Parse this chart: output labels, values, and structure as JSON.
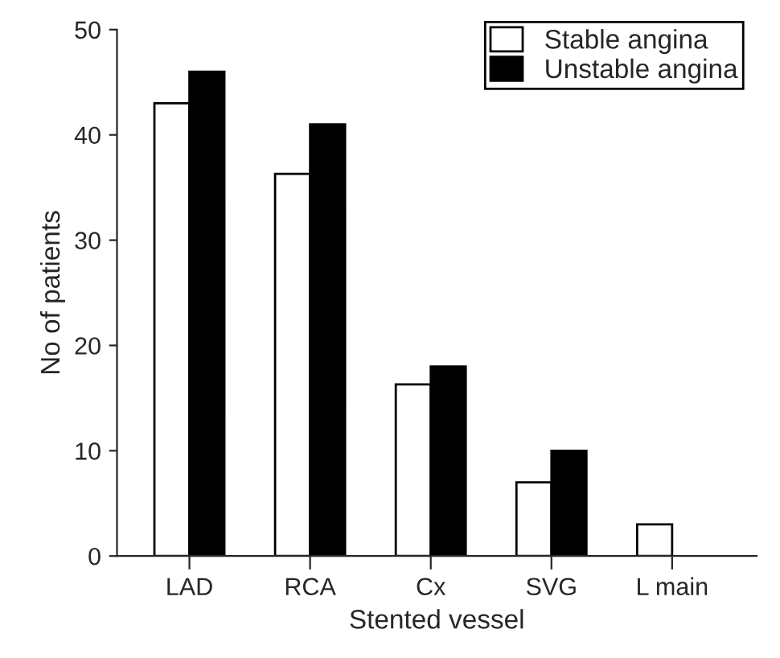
{
  "chart_data": {
    "type": "bar",
    "xlabel": "Stented vessel",
    "ylabel": "No of patients",
    "categories": [
      "LAD",
      "RCA",
      "Cx",
      "SVG",
      "L main"
    ],
    "series": [
      {
        "name": "Stable angina",
        "color": "#ffffff",
        "values": [
          43,
          36.3,
          16.3,
          7,
          3
        ]
      },
      {
        "name": "Unstable angina",
        "color": "#000000",
        "values": [
          46,
          41,
          18,
          10,
          null
        ]
      }
    ],
    "ylim": [
      0,
      50
    ],
    "yticks": [
      0,
      10,
      20,
      30,
      40,
      50
    ],
    "grid": false,
    "legend": "top right"
  }
}
